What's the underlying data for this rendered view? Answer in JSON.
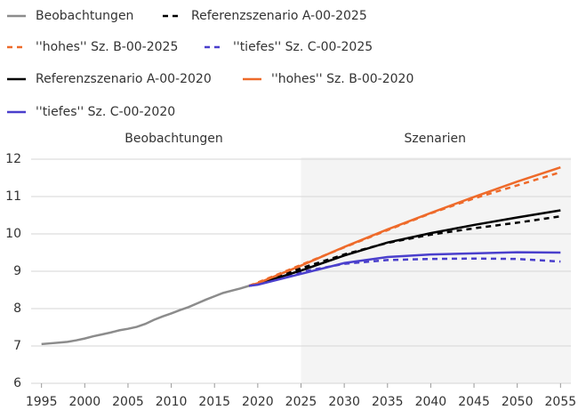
{
  "chart_data": {
    "type": "line",
    "annotations": [
      {
        "text": "Beobachtungen",
        "x": 2010.3
      },
      {
        "text": "Szenarien",
        "x": 2040.5
      }
    ],
    "shaded_from": 2025,
    "xlim": [
      1993.8,
      2056.2
    ],
    "xticks": [
      1995,
      2000,
      2005,
      2010,
      2015,
      2020,
      2025,
      2030,
      2035,
      2040,
      2045,
      2050,
      2055
    ],
    "ylim": [
      6,
      12
    ],
    "yticks": [
      6,
      7,
      8,
      9,
      10,
      11,
      12
    ],
    "grid": true,
    "series": [
      {
        "name": "Beobachtungen",
        "color": "#8c8c8c",
        "dash": false,
        "x": [
          1995,
          1996,
          1997,
          1998,
          1999,
          2000,
          2001,
          2002,
          2003,
          2004,
          2005,
          2006,
          2007,
          2008,
          2009,
          2010,
          2011,
          2012,
          2013,
          2014,
          2015,
          2016,
          2017,
          2018,
          2019
        ],
        "values": [
          7.05,
          7.07,
          7.09,
          7.11,
          7.15,
          7.2,
          7.26,
          7.31,
          7.36,
          7.42,
          7.46,
          7.51,
          7.59,
          7.7,
          7.79,
          7.87,
          7.96,
          8.04,
          8.14,
          8.24,
          8.33,
          8.42,
          8.48,
          8.54,
          8.61
        ]
      },
      {
        "name": "Referenzszenario A-00-2025",
        "color": "#000000",
        "dash": true,
        "x": [
          2019,
          2020,
          2025,
          2030,
          2035,
          2040,
          2045,
          2050,
          2055
        ],
        "values": [
          8.61,
          8.68,
          9.08,
          9.45,
          9.76,
          9.98,
          10.15,
          10.3,
          10.47
        ]
      },
      {
        "name": "''hohes'' Sz. B-00-2025",
        "color": "#ee6a2a",
        "dash": true,
        "x": [
          2019,
          2020,
          2025,
          2030,
          2035,
          2040,
          2045,
          2050,
          2055
        ],
        "values": [
          8.61,
          8.7,
          9.17,
          9.64,
          10.1,
          10.55,
          10.95,
          11.3,
          11.65
        ]
      },
      {
        "name": "''tiefes'' Sz. C-00-2025",
        "color": "#4a3fcc",
        "dash": true,
        "x": [
          2019,
          2020,
          2025,
          2030,
          2035,
          2040,
          2045,
          2050,
          2055
        ],
        "values": [
          8.61,
          8.66,
          8.98,
          9.2,
          9.3,
          9.33,
          9.34,
          9.33,
          9.26
        ]
      },
      {
        "name": "Referenzszenario A-00-2020",
        "color": "#000000",
        "dash": false,
        "x": [
          2019,
          2020,
          2025,
          2030,
          2035,
          2040,
          2045,
          2050,
          2055
        ],
        "values": [
          8.61,
          8.66,
          9.02,
          9.42,
          9.77,
          10.02,
          10.24,
          10.44,
          10.63
        ]
      },
      {
        "name": "''hohes'' Sz. B-00-2020",
        "color": "#ee6a2a",
        "dash": false,
        "x": [
          2019,
          2020,
          2025,
          2030,
          2035,
          2040,
          2045,
          2050,
          2055
        ],
        "values": [
          8.61,
          8.68,
          9.15,
          9.65,
          10.12,
          10.56,
          10.99,
          11.4,
          11.78
        ]
      },
      {
        "name": "''tiefes'' Sz. C-00-2020",
        "color": "#4a3fcc",
        "dash": false,
        "x": [
          2019,
          2020,
          2025,
          2030,
          2035,
          2040,
          2045,
          2050,
          2055
        ],
        "values": [
          8.61,
          8.64,
          8.93,
          9.22,
          9.38,
          9.45,
          9.48,
          9.51,
          9.5
        ]
      }
    ]
  }
}
